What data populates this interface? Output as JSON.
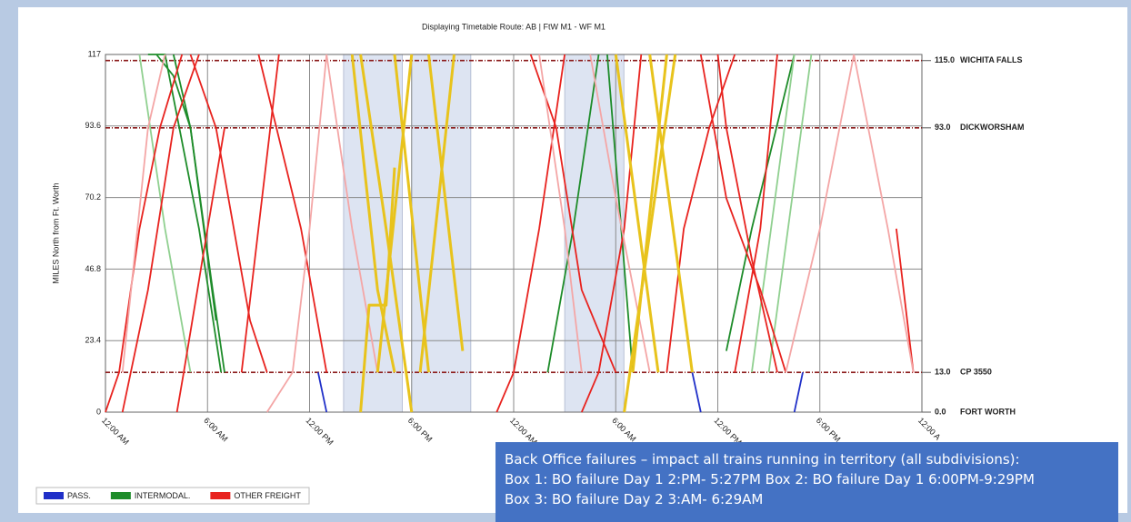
{
  "chart_data": {
    "type": "stringline",
    "title": "Displaying Timetable Route: AB | FtW M1 - WF M1",
    "y_label": "MILES North from Ft. Worth",
    "xlim": [
      0,
      48
    ],
    "xticks": [
      {
        "value": 0,
        "label": "12:00 AM"
      },
      {
        "value": 6,
        "label": "6:00 AM"
      },
      {
        "value": 12,
        "label": "12:00 PM"
      },
      {
        "value": 18,
        "label": "6:00 PM"
      },
      {
        "value": 24,
        "label": "12:00 AM"
      },
      {
        "value": 30,
        "label": "6:00 AM"
      },
      {
        "value": 36,
        "label": "12:00 PM"
      },
      {
        "value": 42,
        "label": "6:00 PM"
      },
      {
        "value": 48,
        "label": "12:00 A"
      }
    ],
    "ylim": [
      0,
      117
    ],
    "yticks": [
      0,
      23.4,
      46.8,
      70.2,
      93.6,
      117
    ],
    "grid": true,
    "stations": [
      {
        "mile": 115,
        "label": "115.0",
        "name": "WICHITA FALLS"
      },
      {
        "mile": 93,
        "label": "93.0",
        "name": "DICKWORSHAM"
      },
      {
        "mile": 13,
        "label": "13.0",
        "name": "CP 3550"
      },
      {
        "mile": 0,
        "label": "0.0",
        "name": "FORT WORTH"
      }
    ],
    "shaded_regions": [
      [
        14,
        17.45
      ],
      [
        18,
        21.48
      ],
      [
        27,
        30.48
      ]
    ],
    "legend_position": "lower left",
    "series": [
      {
        "name": "PASS.",
        "color": "#1f2fc8",
        "trains": [
          {
            "x": [
              12.5,
              13
            ],
            "y": [
              13,
              0
            ]
          },
          {
            "x": [
              34.5,
              35
            ],
            "y": [
              13,
              0
            ]
          },
          {
            "x": [
              40.5,
              41
            ],
            "y": [
              0,
              13
            ]
          }
        ]
      },
      {
        "name": "INTERMODAL.",
        "color": "#1e8c2a",
        "trains": [
          {
            "x": [
              3,
              4,
              5,
              6.3,
              7
            ],
            "y": [
              117,
              110,
              93,
              40,
              13
            ]
          },
          {
            "x": [
              2.5,
              3.5,
              5.5,
              6.8
            ],
            "y": [
              117,
              117,
              60,
              13
            ]
          },
          {
            "x": [
              4,
              5,
              6.5
            ],
            "y": [
              117,
              93,
              30
            ]
          },
          {
            "x": [
              26,
              27.5,
              29
            ],
            "y": [
              13,
              60,
              117
            ]
          },
          {
            "x": [
              29.5,
              31
            ],
            "y": [
              117,
              13
            ]
          },
          {
            "x": [
              36.5,
              38,
              40.5
            ],
            "y": [
              20,
              60,
              117
            ]
          },
          {
            "x": [
              2,
              3.5,
              5
            ],
            "y": [
              117,
              60,
              13
            ],
            "color": "#90d090"
          },
          {
            "x": [
              38,
              40.5
            ],
            "y": [
              13,
              117
            ],
            "color": "#90d090"
          },
          {
            "x": [
              39,
              41.5
            ],
            "y": [
              13,
              117
            ],
            "color": "#90d090"
          }
        ]
      },
      {
        "name": "OTHER FREIGHT",
        "color": "#e8231f",
        "trains": [
          {
            "x": [
              0,
              0.8,
              2,
              3.2,
              4.5
            ],
            "y": [
              0,
              13,
              60,
              93,
              117
            ]
          },
          {
            "x": [
              1,
              2.5,
              4,
              5.5
            ],
            "y": [
              0,
              40,
              93,
              117
            ]
          },
          {
            "x": [
              4.2,
              4.6,
              6,
              7
            ],
            "y": [
              0,
              13,
              60,
              93
            ]
          },
          {
            "x": [
              5,
              6.5,
              8.5,
              9.5
            ],
            "y": [
              117,
              93,
              30,
              13
            ]
          },
          {
            "x": [
              8,
              10.2
            ],
            "y": [
              13,
              117
            ]
          },
          {
            "x": [
              9,
              11.5,
              13
            ],
            "y": [
              117,
              60,
              13
            ]
          },
          {
            "x": [
              23,
              24,
              25.5,
              27
            ],
            "y": [
              0,
              13,
              60,
              117
            ]
          },
          {
            "x": [
              25,
              26.5,
              28,
              30
            ],
            "y": [
              117,
              93,
              40,
              13
            ]
          },
          {
            "x": [
              28,
              29,
              30.5,
              31.5
            ],
            "y": [
              0,
              13,
              60,
              117
            ]
          },
          {
            "x": [
              33,
              34,
              35.5,
              37
            ],
            "y": [
              13,
              60,
              93,
              117
            ]
          },
          {
            "x": [
              36,
              36.5,
              38,
              39.5
            ],
            "y": [
              117,
              93,
              50,
              13
            ]
          },
          {
            "x": [
              35,
              36.5,
              38.5,
              40
            ],
            "y": [
              117,
              70,
              40,
              13
            ]
          },
          {
            "x": [
              37,
              38.5,
              39.5
            ],
            "y": [
              13,
              60,
              117
            ]
          },
          {
            "x": [
              46.5,
              47.5
            ],
            "y": [
              60,
              13
            ]
          },
          {
            "x": [
              1,
              2.5,
              3.5
            ],
            "y": [
              13,
              93,
              117
            ],
            "color": "#f4a6a6"
          },
          {
            "x": [
              9.5,
              11,
              12,
              13
            ],
            "y": [
              0,
              13,
              60,
              117
            ],
            "color": "#f4a6a6"
          },
          {
            "x": [
              13,
              14.5,
              16
            ],
            "y": [
              117,
              60,
              13
            ],
            "color": "#f4a6a6"
          },
          {
            "x": [
              25.5,
              27,
              28
            ],
            "y": [
              117,
              60,
              13
            ],
            "color": "#f4a6a6"
          },
          {
            "x": [
              28.5,
              30,
              32
            ],
            "y": [
              117,
              70,
              13
            ],
            "color": "#f4a6a6"
          },
          {
            "x": [
              40,
              42,
              44
            ],
            "y": [
              13,
              60,
              117
            ],
            "color": "#f4a6a6"
          },
          {
            "x": [
              44,
              46,
              47.5
            ],
            "y": [
              117,
              60,
              13
            ],
            "color": "#f4a6a6"
          },
          {
            "x": [
              14.5,
              16,
              17
            ],
            "y": [
              117,
              40,
              13
            ],
            "color": "#e8c31c"
          },
          {
            "x": [
              15,
              16.5,
              18
            ],
            "y": [
              117,
              60,
              0
            ],
            "color": "#e8c31c"
          },
          {
            "x": [
              15,
              15.5,
              16.5,
              17
            ],
            "y": [
              0,
              35,
              35,
              80
            ],
            "color": "#e8c31c"
          },
          {
            "x": [
              16,
              18
            ],
            "y": [
              13,
              117
            ],
            "color": "#e8c31c"
          },
          {
            "x": [
              17,
              19
            ],
            "y": [
              117,
              13
            ],
            "color": "#e8c31c"
          },
          {
            "x": [
              18.5,
              20.5
            ],
            "y": [
              13,
              117
            ],
            "color": "#e8c31c"
          },
          {
            "x": [
              19,
              21
            ],
            "y": [
              117,
              20
            ],
            "color": "#e8c31c"
          },
          {
            "x": [
              30,
              32.5
            ],
            "y": [
              117,
              13
            ],
            "color": "#e8c31c"
          },
          {
            "x": [
              31,
              33
            ],
            "y": [
              13,
              117
            ],
            "color": "#e8c31c"
          },
          {
            "x": [
              30.5,
              33.5
            ],
            "y": [
              0,
              117
            ],
            "color": "#e8c31c"
          },
          {
            "x": [
              32,
              34.5
            ],
            "y": [
              117,
              13
            ],
            "color": "#e8c31c"
          }
        ]
      }
    ]
  },
  "annotation": {
    "lines": [
      "Back Office failures – impact all trains running in territory (all subdivisions):",
      "Box 1: BO failure Day 1 2:PM- 5:27PM  Box 2: BO failure Day 1 6:00PM-9:29PM",
      "Box 3: BO failure Day 2 3:AM- 6:29AM"
    ]
  }
}
